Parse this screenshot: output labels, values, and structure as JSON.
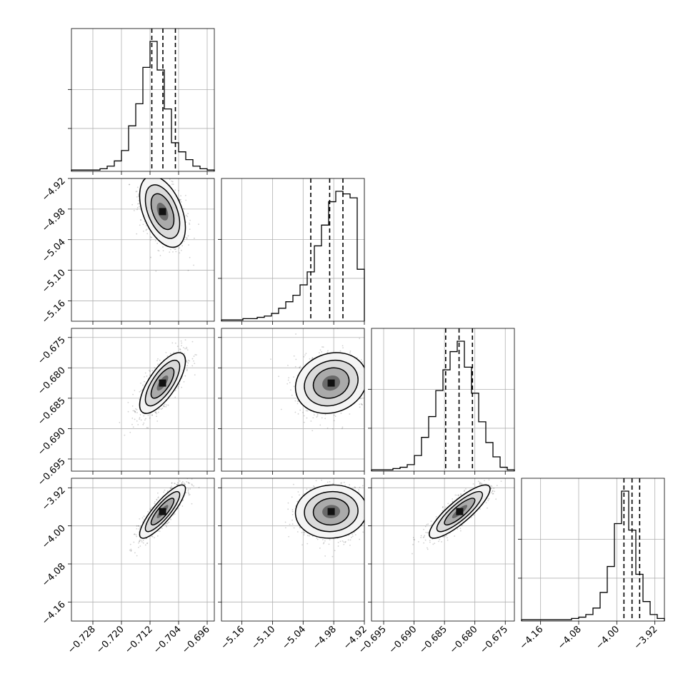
{
  "chart_data": {
    "type": "corner",
    "title": "",
    "parameters": [
      {
        "range": [
          -0.734,
          -0.694
        ],
        "ticks": [
          -0.728,
          -0.72,
          -0.712,
          -0.704,
          -0.696
        ],
        "tick_labels": [
          "−0.728",
          "−0.720",
          "−0.712",
          "−0.704",
          "−0.696"
        ],
        "quantiles": [
          -0.7115,
          -0.7084,
          -0.7049
        ]
      },
      {
        "range": [
          -5.2,
          -4.92
        ],
        "ticks": [
          -5.16,
          -5.1,
          -5.04,
          -4.98,
          -4.92
        ],
        "tick_labels": [
          "−5.16",
          "−5.10",
          "−5.04",
          "−4.98",
          "−4.92"
        ],
        "quantiles": [
          -5.025,
          -4.988,
          -4.962
        ]
      },
      {
        "range": [
          -0.697,
          -0.6735
        ],
        "ticks": [
          -0.695,
          -0.69,
          -0.685,
          -0.68,
          -0.675
        ],
        "tick_labels": [
          "−0.695",
          "−0.690",
          "−0.685",
          "−0.680",
          "−0.675"
        ],
        "quantiles": [
          -0.6848,
          -0.6826,
          -0.6804
        ]
      },
      {
        "range": [
          -4.2,
          -3.9
        ],
        "ticks": [
          -4.16,
          -4.08,
          -4.0,
          -3.92
        ],
        "tick_labels": [
          "−4.16",
          "−4.08",
          "−4.00",
          "−3.92"
        ],
        "quantiles": [
          -3.985,
          -3.968,
          -3.952
        ]
      }
    ],
    "histograms": [
      {
        "counts": [
          1,
          1,
          1,
          1,
          2,
          4,
          8,
          16,
          35,
          52,
          80,
          100,
          78,
          48,
          22,
          15,
          9,
          4,
          2,
          1
        ]
      },
      {
        "counts": [
          1,
          1,
          1,
          2,
          2,
          3,
          4,
          6,
          10,
          15,
          20,
          28,
          38,
          58,
          74,
          92,
          100,
          98,
          95,
          40
        ]
      },
      {
        "counts": [
          1,
          1,
          1,
          2,
          3,
          5,
          12,
          26,
          42,
          62,
          78,
          92,
          100,
          80,
          60,
          38,
          22,
          11,
          3,
          1
        ]
      },
      {
        "counts": [
          1,
          1,
          1,
          1,
          1,
          1,
          1,
          2,
          3,
          5,
          10,
          22,
          42,
          75,
          100,
          70,
          36,
          15,
          5,
          2
        ]
      }
    ],
    "pairs": [
      {
        "row": 1,
        "col": 0,
        "center": [
          -0.7085,
          -4.985
        ],
        "spread": [
          0.0032,
          0.035
        ],
        "rho": -0.45
      },
      {
        "row": 2,
        "col": 0,
        "center": [
          -0.7085,
          -0.6825
        ],
        "spread": [
          0.0032,
          0.0025
        ],
        "rho": 0.72
      },
      {
        "row": 2,
        "col": 1,
        "center": [
          -4.985,
          -0.6825
        ],
        "spread": [
          0.035,
          0.0025
        ],
        "rho": 0.15
      },
      {
        "row": 3,
        "col": 0,
        "center": [
          -0.7085,
          -3.97
        ],
        "spread": [
          0.0032,
          0.028
        ],
        "rho": 0.85
      },
      {
        "row": 3,
        "col": 1,
        "center": [
          -4.985,
          -3.97
        ],
        "spread": [
          0.035,
          0.028
        ],
        "rho": 0.05
      },
      {
        "row": 3,
        "col": 2,
        "center": [
          -0.6825,
          -3.97
        ],
        "spread": [
          0.0025,
          0.028
        ],
        "rho": 0.85
      }
    ],
    "contour_levels_sigma": [
      0.5,
      1.0,
      1.5,
      2.0
    ],
    "grid": true,
    "quantile_line_style": "dashed"
  }
}
